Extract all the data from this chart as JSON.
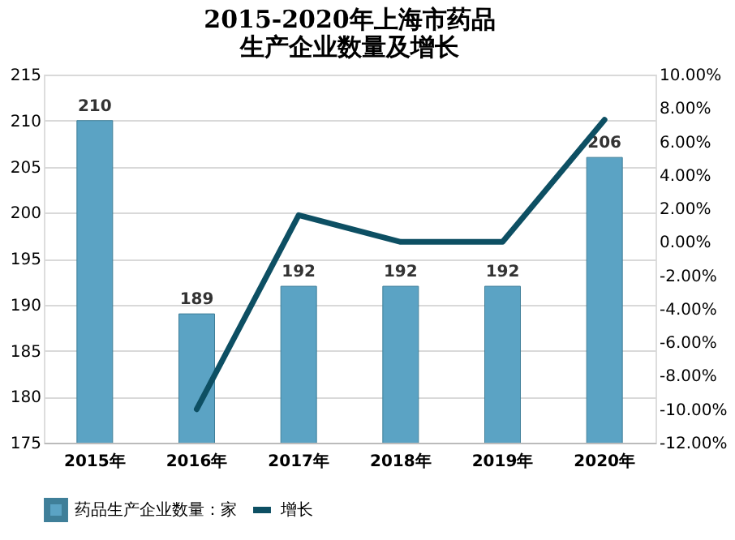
{
  "chart_data": {
    "type": "bar",
    "title": "2015-2020年上海市药品生产企业数量及增长",
    "categories": [
      "2015年",
      "2016年",
      "2017年",
      "2018年",
      "2019年",
      "2020年"
    ],
    "series": [
      {
        "name": "药品生产企业数量：家",
        "color": "#5ba3c4",
        "values": [
          210,
          189,
          192,
          192,
          192,
          206
        ],
        "value_labels": [
          "210",
          "189",
          "192",
          "192",
          "192",
          "206"
        ]
      },
      {
        "name": "增长",
        "type": "line",
        "axis": "y2",
        "color": "#0d4f63",
        "values": [
          null,
          -10.0,
          1.6,
          0,
          0,
          7.3
        ]
      }
    ],
    "ylim": [
      175,
      215
    ],
    "yticks": [
      175,
      180,
      185,
      190,
      195,
      200,
      205,
      210,
      215
    ],
    "y2lim": [
      -12,
      10
    ],
    "y2ticks": [
      {
        "value": -12,
        "label": "-12.00%"
      },
      {
        "value": -10,
        "label": "-10.00%"
      },
      {
        "value": -8,
        "label": "-8.00%"
      },
      {
        "value": -6,
        "label": "-6.00%"
      },
      {
        "value": -4,
        "label": "-4.00%"
      },
      {
        "value": -2,
        "label": "-2.00%"
      },
      {
        "value": 0,
        "label": "0.00%"
      },
      {
        "value": 2,
        "label": "2.00%"
      },
      {
        "value": 4,
        "label": "4.00%"
      },
      {
        "value": 6,
        "label": "6.00%"
      },
      {
        "value": 8,
        "label": "8.00%"
      },
      {
        "value": 10,
        "label": "10.00%"
      }
    ],
    "grid": "y",
    "legend": "bottom"
  }
}
